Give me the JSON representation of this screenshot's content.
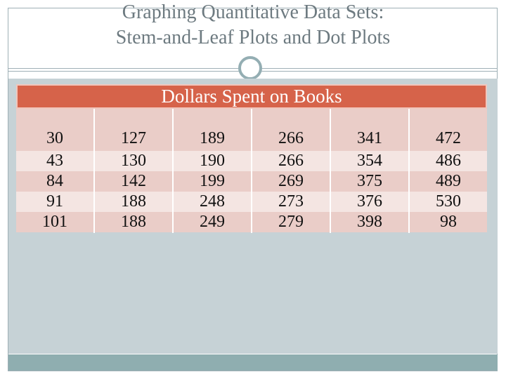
{
  "slide": {
    "title_line1": "Graphing Quantitative Data Sets:",
    "title_line2": "Stem-and-Leaf Plots and Dot Plots"
  },
  "table": {
    "header": "Dollars Spent on Books",
    "columns": [
      [
        "30",
        "43",
        "84",
        "91",
        "101"
      ],
      [
        "127",
        "130",
        "142",
        "188",
        "188"
      ],
      [
        "189",
        "190",
        "199",
        "248",
        "249"
      ],
      [
        "266",
        "266",
        "269",
        "273",
        "279"
      ],
      [
        "341",
        "354",
        "375",
        "376",
        "398"
      ],
      [
        "472",
        "486",
        "489",
        "530",
        "98"
      ]
    ]
  },
  "colors": {
    "header_bg": "#d6634a",
    "cell_dark": "#eacdc8",
    "cell_light": "#f4e5e2",
    "content_bg": "#c6d2d6",
    "footer_bar": "#8faeb0"
  }
}
